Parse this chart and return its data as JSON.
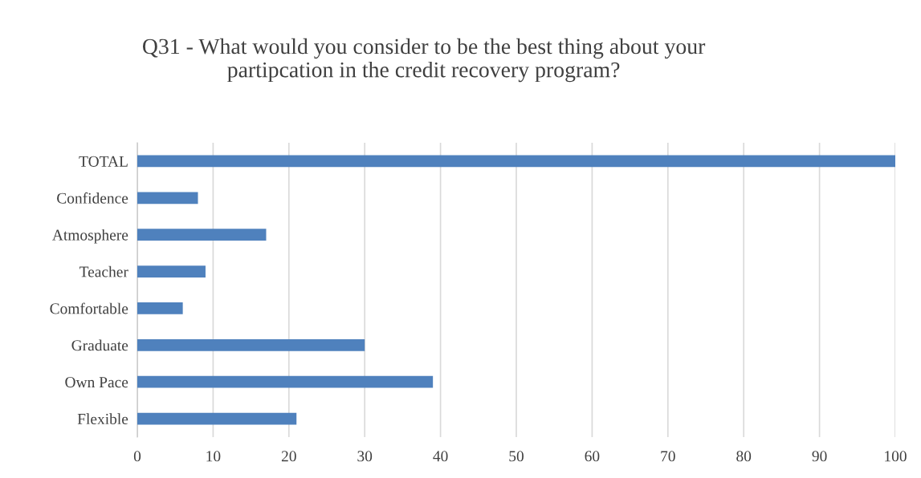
{
  "chart_data": {
    "type": "bar",
    "orientation": "horizontal",
    "title": "Q31 - What would you consider to be the best thing about your\npartipcation in the credit recovery program?",
    "categories": [
      "TOTAL",
      "Confidence",
      "Atmosphere",
      "Teacher",
      "Comfortable",
      "Graduate",
      "Own Pace",
      "Flexible"
    ],
    "values": [
      100,
      8,
      17,
      9,
      6,
      30,
      39,
      21
    ],
    "color": "#4f81bd",
    "xlim": [
      0,
      100
    ],
    "xticks": [
      0,
      10,
      20,
      30,
      40,
      50,
      60,
      70,
      80,
      90,
      100
    ],
    "grid": "x",
    "legend": false
  }
}
